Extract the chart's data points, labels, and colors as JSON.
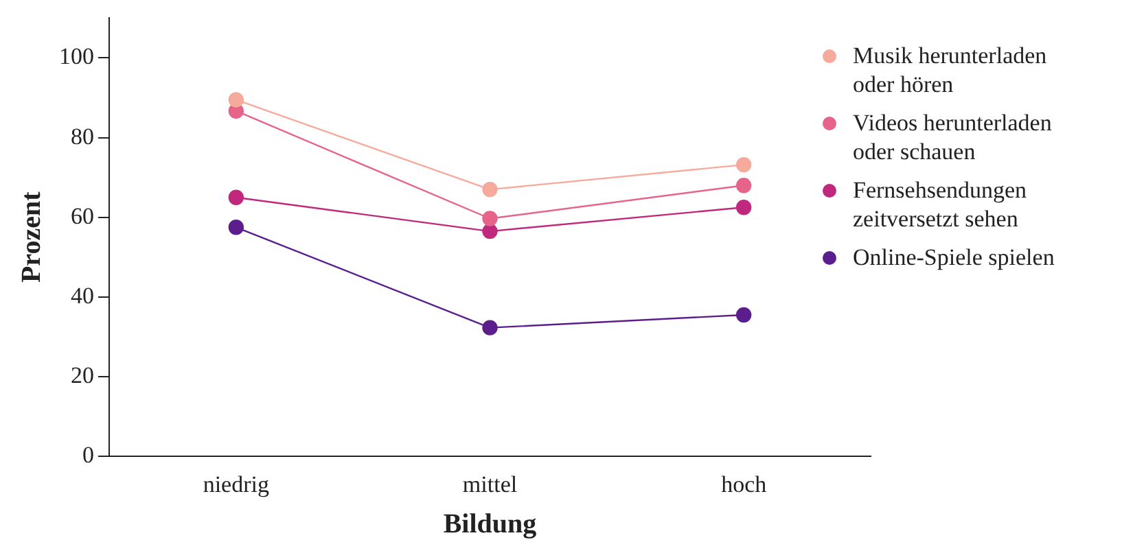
{
  "chart_data": {
    "type": "line",
    "xlabel": "Bildung",
    "ylabel": "Prozent",
    "categories": [
      "niedrig",
      "mittel",
      "hoch"
    ],
    "series": [
      {
        "name": "Musik herunterladen oder hören",
        "color": "#f6aa9c",
        "values": [
          89.5,
          67,
          73.2
        ]
      },
      {
        "name": "Videos herunterladen oder schauen",
        "color": "#e6648a",
        "values": [
          86.7,
          59.7,
          68
        ]
      },
      {
        "name": "Fernsehsendungen zeitversetzt sehen",
        "color": "#c0287e",
        "values": [
          65,
          56.5,
          62.5
        ]
      },
      {
        "name": "Online-Spiele spielen",
        "color": "#5b1e8c",
        "values": [
          57.5,
          32.3,
          35.5
        ]
      }
    ],
    "ylim": [
      0,
      110
    ],
    "yticks": [
      0,
      20,
      40,
      60,
      80,
      100
    ],
    "grid": false,
    "legend": "top right",
    "marker": "circle",
    "line_style": "solid"
  }
}
